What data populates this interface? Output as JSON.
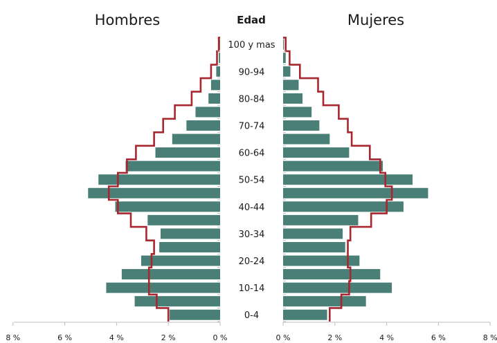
{
  "chart_data": {
    "type": "bar",
    "subtype": "population-pyramid",
    "left_title": "Hombres",
    "right_title": "Mujeres",
    "center_title": "Edad",
    "bar_color": "#4a7f77",
    "outline_color": "#a8262e",
    "age_groups": [
      "0-4",
      "5-9",
      "10-14",
      "15-19",
      "20-24",
      "25-29",
      "30-34",
      "35-39",
      "40-44",
      "45-49",
      "50-54",
      "55-59",
      "60-64",
      "65-69",
      "70-74",
      "75-79",
      "80-84",
      "85-89",
      "90-94",
      "95-99",
      "100 y mas"
    ],
    "age_labels_shown": [
      "0-4",
      "10-14",
      "20-24",
      "30-34",
      "40-44",
      "50-54",
      "60-64",
      "70-74",
      "80-84",
      "90-94",
      "100 y mas"
    ],
    "axis_ticks_left": [
      "8 %",
      "6 %",
      "4 %",
      "2 %",
      "0 %"
    ],
    "axis_ticks_right": [
      "0 %",
      "2 %",
      "4 %",
      "6 %",
      "8 %"
    ],
    "xlim": [
      0,
      8
    ],
    "series": [
      {
        "name": "Hombres",
        "values": [
          1.95,
          3.3,
          4.4,
          3.8,
          3.05,
          2.35,
          2.3,
          2.8,
          4.05,
          5.1,
          4.7,
          3.65,
          2.5,
          1.85,
          1.3,
          0.95,
          0.45,
          0.35,
          0.15,
          0.05,
          0.02
        ]
      },
      {
        "name": "Mujeres",
        "values": [
          1.7,
          3.2,
          4.2,
          3.75,
          2.95,
          2.4,
          2.3,
          2.9,
          4.65,
          5.6,
          5.0,
          3.85,
          2.55,
          1.8,
          1.4,
          1.1,
          0.75,
          0.6,
          0.28,
          0.1,
          0.03
        ]
      },
      {
        "name": "Hombres (outline)",
        "values": [
          2.0,
          2.45,
          2.75,
          2.75,
          2.65,
          2.55,
          2.85,
          3.45,
          3.95,
          4.3,
          3.95,
          3.6,
          3.25,
          2.55,
          2.2,
          1.75,
          1.1,
          0.75,
          0.35,
          0.12,
          0.05
        ]
      },
      {
        "name": "Mujeres (outline)",
        "values": [
          1.8,
          2.25,
          2.55,
          2.6,
          2.5,
          2.5,
          2.6,
          3.4,
          4.0,
          4.2,
          3.95,
          3.75,
          3.35,
          2.65,
          2.5,
          2.15,
          1.55,
          1.35,
          0.65,
          0.25,
          0.1
        ]
      }
    ]
  }
}
